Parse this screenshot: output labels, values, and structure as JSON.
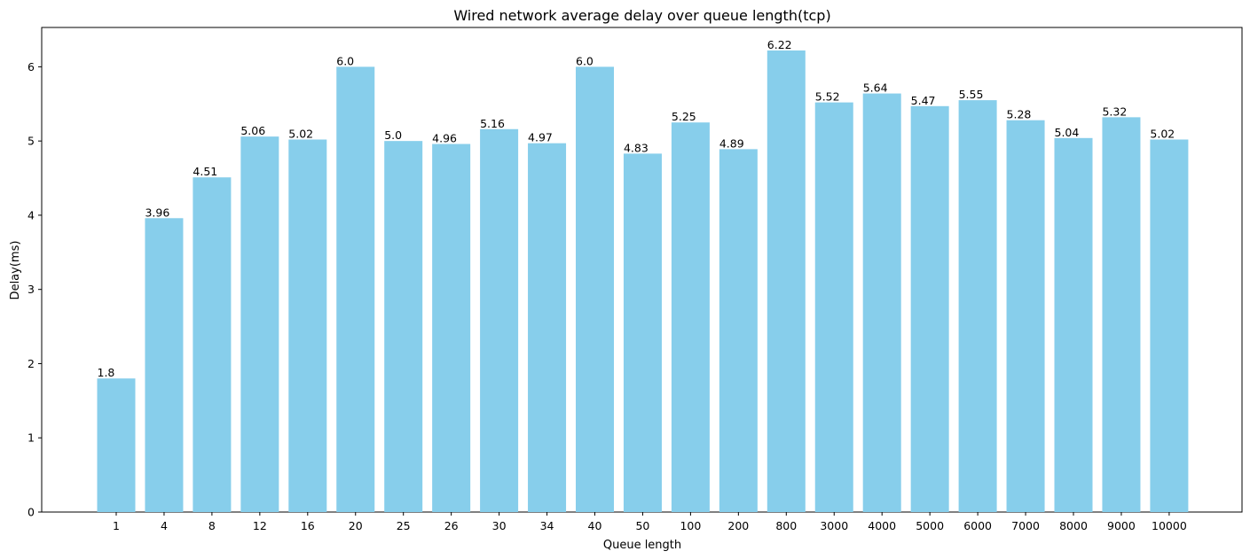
{
  "chart_data": {
    "type": "bar",
    "title": "Wired network average delay over queue length(tcp)",
    "xlabel": "Queue length",
    "ylabel": "Delay(ms)",
    "categories": [
      "1",
      "4",
      "8",
      "12",
      "16",
      "20",
      "25",
      "26",
      "30",
      "34",
      "40",
      "50",
      "100",
      "200",
      "800",
      "3000",
      "4000",
      "5000",
      "6000",
      "7000",
      "8000",
      "9000",
      "10000"
    ],
    "values": [
      1.8,
      3.96,
      4.51,
      5.06,
      5.02,
      6.0,
      5.0,
      4.96,
      5.16,
      4.97,
      6.0,
      4.83,
      5.25,
      4.89,
      6.22,
      5.52,
      5.64,
      5.47,
      5.55,
      5.28,
      5.04,
      5.32,
      5.02
    ],
    "value_labels": [
      "1.8",
      "3.96",
      "4.51",
      "5.06",
      "5.02",
      "6.0",
      "5.0",
      "4.96",
      "5.16",
      "4.97",
      "6.0",
      "4.83",
      "5.25",
      "4.89",
      "6.22",
      "5.52",
      "5.64",
      "5.47",
      "5.55",
      "5.28",
      "5.04",
      "5.32",
      "5.02"
    ],
    "yticks": [
      0,
      1,
      2,
      3,
      4,
      5,
      6
    ],
    "ylim": [
      0,
      6.53
    ],
    "grid": false,
    "colors": {
      "bar": "#87ceeb",
      "axis": "#000000"
    }
  }
}
